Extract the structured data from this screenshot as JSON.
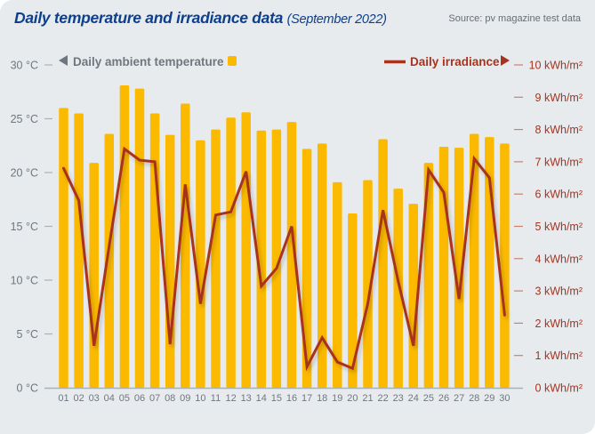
{
  "header": {
    "title": "Daily temperature and irradiance data",
    "subtitle": "(September 2022)",
    "source": "Source: pv magazine test data"
  },
  "colors": {
    "background": "#e8ebee",
    "title": "#0d3f8c",
    "bars": "#fbb900",
    "line": "#a8321e",
    "axis_text": "#6e777f"
  },
  "chart_data": {
    "type": "bar+line",
    "title": "Daily temperature and irradiance data (September 2022)",
    "categories": [
      "01",
      "02",
      "03",
      "04",
      "05",
      "06",
      "07",
      "08",
      "09",
      "10",
      "11",
      "12",
      "13",
      "14",
      "15",
      "16",
      "17",
      "18",
      "19",
      "20",
      "21",
      "22",
      "23",
      "24",
      "25",
      "26",
      "27",
      "28",
      "29",
      "30"
    ],
    "series": [
      {
        "name": "Daily ambient temperature",
        "type": "bar",
        "axis": "left",
        "unit": "°C",
        "values": [
          26.0,
          25.5,
          20.9,
          23.6,
          28.1,
          27.8,
          25.5,
          23.5,
          26.4,
          23.0,
          24.0,
          25.1,
          25.6,
          23.9,
          24.0,
          24.7,
          22.2,
          22.7,
          19.1,
          16.2,
          19.3,
          23.1,
          18.5,
          17.1,
          20.9,
          22.4,
          22.3,
          23.6,
          23.3,
          22.7
        ]
      },
      {
        "name": "Daily irradiance",
        "type": "line",
        "axis": "right",
        "unit": "kWh/m²",
        "values": [
          6.8,
          5.8,
          1.3,
          4.4,
          7.4,
          7.05,
          7.0,
          1.35,
          6.3,
          2.6,
          5.35,
          5.45,
          6.7,
          3.15,
          3.7,
          5.0,
          0.65,
          1.55,
          0.8,
          0.6,
          2.6,
          5.5,
          3.3,
          1.3,
          6.75,
          6.05,
          2.75,
          7.1,
          6.5,
          2.25
        ]
      }
    ],
    "y_left": {
      "range": [
        0,
        30
      ],
      "ticks": [
        0,
        5,
        10,
        15,
        20,
        25,
        30
      ],
      "tick_labels": [
        "0 °C",
        "5 °C",
        "10 °C",
        "15 °C",
        "20 °C",
        "25 °C",
        "30 °C"
      ]
    },
    "y_right": {
      "range": [
        0,
        10
      ],
      "ticks": [
        0,
        1,
        2,
        3,
        4,
        5,
        6,
        7,
        8,
        9,
        10
      ],
      "tick_labels": [
        "0 kWh/m²",
        "1 kWh/m²",
        "2 kWh/m²",
        "3 kWh/m²",
        "4 kWh/m²",
        "5 kWh/m²",
        "6 kWh/m²",
        "7 kWh/m²",
        "8 kWh/m²",
        "9 kWh/m²",
        "10 kWh/m²"
      ]
    },
    "legend": {
      "left": "Daily ambient temperature",
      "right": "Daily irradiance",
      "placement": "top"
    },
    "grid": false,
    "xlabel": "",
    "ylabel": ""
  }
}
